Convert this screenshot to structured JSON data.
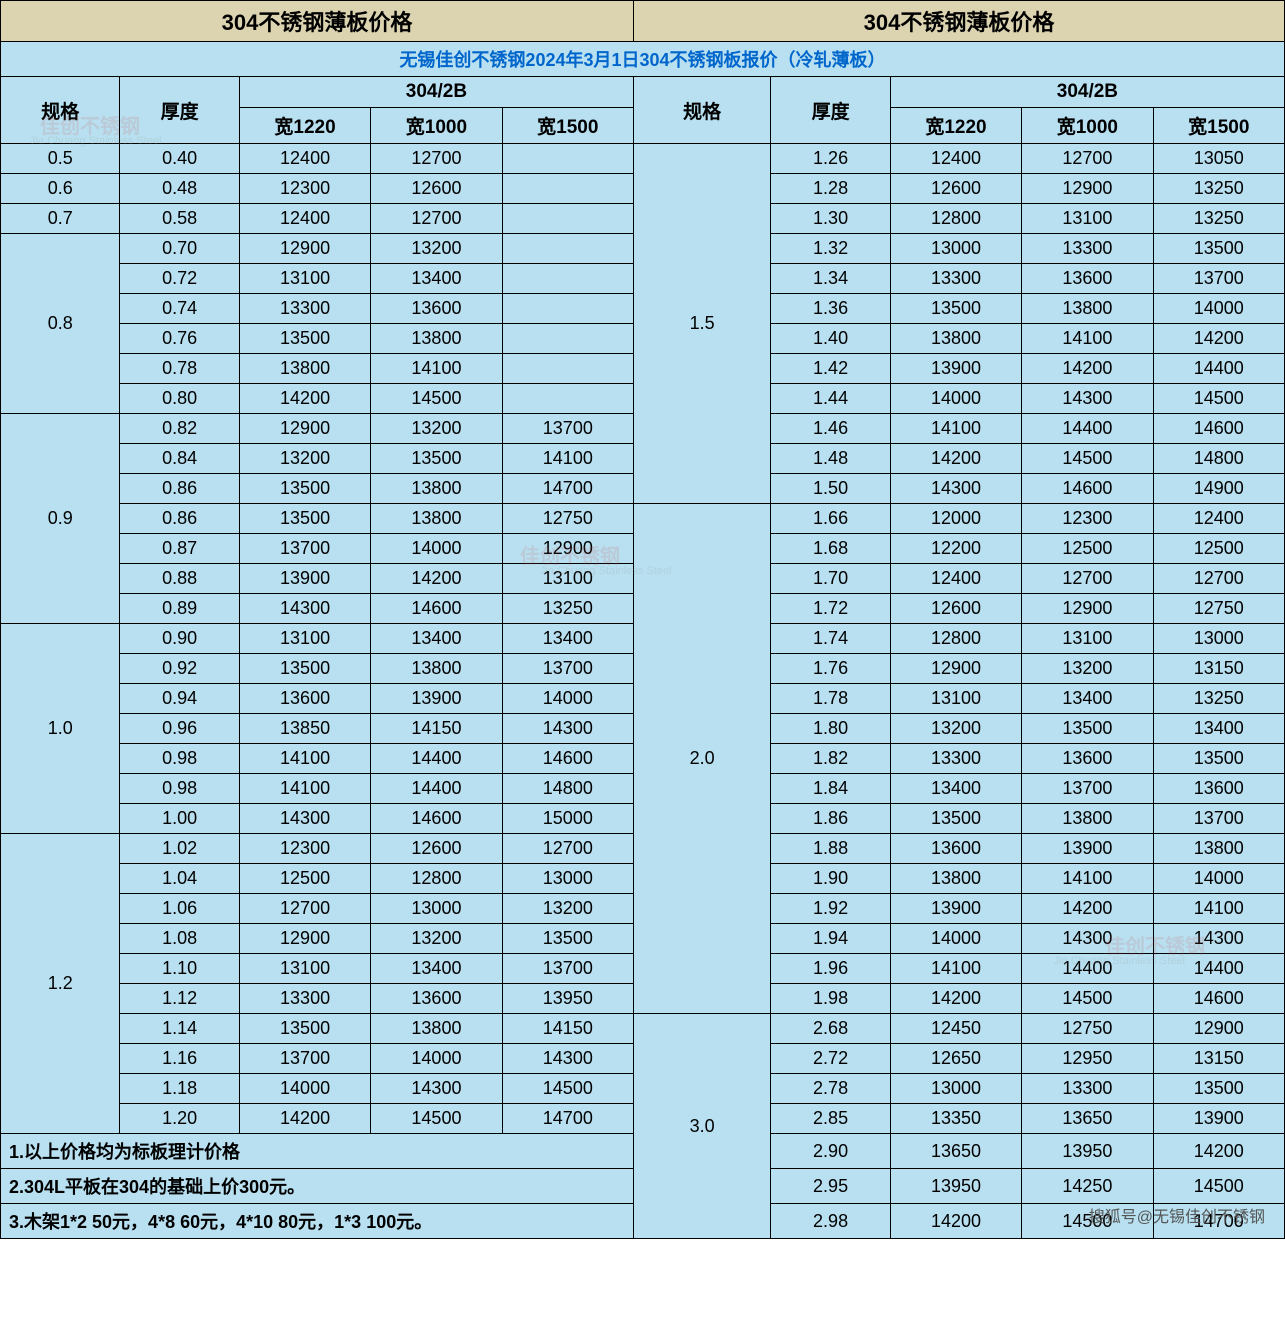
{
  "title_left": "304不锈钢薄板价格",
  "title_right": "304不锈钢薄板价格",
  "subtitle": "无锡佳创不锈钢2024年3月1日304不锈钢板报价（冷轧薄板）",
  "header": {
    "spec": "规格",
    "thickness": "厚度",
    "finish": "304/2B",
    "w1220": "宽1220",
    "w1000": "宽1000",
    "w1500": "宽1500"
  },
  "left_groups": [
    {
      "spec": "0.5",
      "rows": [
        {
          "t": "0.40",
          "w1220": "12400",
          "w1000": "12700",
          "w1500": ""
        }
      ]
    },
    {
      "spec": "0.6",
      "rows": [
        {
          "t": "0.48",
          "w1220": "12300",
          "w1000": "12600",
          "w1500": ""
        }
      ]
    },
    {
      "spec": "0.7",
      "rows": [
        {
          "t": "0.58",
          "w1220": "12400",
          "w1000": "12700",
          "w1500": ""
        }
      ]
    },
    {
      "spec": "0.8",
      "rows": [
        {
          "t": "0.70",
          "w1220": "12900",
          "w1000": "13200",
          "w1500": ""
        },
        {
          "t": "0.72",
          "w1220": "13100",
          "w1000": "13400",
          "w1500": ""
        },
        {
          "t": "0.74",
          "w1220": "13300",
          "w1000": "13600",
          "w1500": ""
        },
        {
          "t": "0.76",
          "w1220": "13500",
          "w1000": "13800",
          "w1500": ""
        },
        {
          "t": "0.78",
          "w1220": "13800",
          "w1000": "14100",
          "w1500": ""
        },
        {
          "t": "0.80",
          "w1220": "14200",
          "w1000": "14500",
          "w1500": ""
        }
      ]
    },
    {
      "spec": "0.9",
      "rows": [
        {
          "t": "0.82",
          "w1220": "12900",
          "w1000": "13200",
          "w1500": "13700"
        },
        {
          "t": "0.84",
          "w1220": "13200",
          "w1000": "13500",
          "w1500": "14100"
        },
        {
          "t": "0.86",
          "w1220": "13500",
          "w1000": "13800",
          "w1500": "14700"
        },
        {
          "t": "0.86",
          "w1220": "13500",
          "w1000": "13800",
          "w1500": "12750"
        },
        {
          "t": "0.87",
          "w1220": "13700",
          "w1000": "14000",
          "w1500": "12900"
        },
        {
          "t": "0.88",
          "w1220": "13900",
          "w1000": "14200",
          "w1500": "13100"
        },
        {
          "t": "0.89",
          "w1220": "14300",
          "w1000": "14600",
          "w1500": "13250"
        }
      ]
    },
    {
      "spec": "1.0",
      "rows": [
        {
          "t": "0.90",
          "w1220": "13100",
          "w1000": "13400",
          "w1500": "13400"
        },
        {
          "t": "0.92",
          "w1220": "13500",
          "w1000": "13800",
          "w1500": "13700"
        },
        {
          "t": "0.94",
          "w1220": "13600",
          "w1000": "13900",
          "w1500": "14000"
        },
        {
          "t": "0.96",
          "w1220": "13850",
          "w1000": "14150",
          "w1500": "14300"
        },
        {
          "t": "0.98",
          "w1220": "14100",
          "w1000": "14400",
          "w1500": "14600"
        },
        {
          "t": "0.98",
          "w1220": "14100",
          "w1000": "14400",
          "w1500": "14800"
        },
        {
          "t": "1.00",
          "w1220": "14300",
          "w1000": "14600",
          "w1500": "15000"
        }
      ]
    },
    {
      "spec": "1.2",
      "rows": [
        {
          "t": "1.02",
          "w1220": "12300",
          "w1000": "12600",
          "w1500": "12700"
        },
        {
          "t": "1.04",
          "w1220": "12500",
          "w1000": "12800",
          "w1500": "13000"
        },
        {
          "t": "1.06",
          "w1220": "12700",
          "w1000": "13000",
          "w1500": "13200"
        },
        {
          "t": "1.08",
          "w1220": "12900",
          "w1000": "13200",
          "w1500": "13500"
        },
        {
          "t": "1.10",
          "w1220": "13100",
          "w1000": "13400",
          "w1500": "13700"
        },
        {
          "t": "1.12",
          "w1220": "13300",
          "w1000": "13600",
          "w1500": "13950"
        },
        {
          "t": "1.14",
          "w1220": "13500",
          "w1000": "13800",
          "w1500": "14150"
        },
        {
          "t": "1.16",
          "w1220": "13700",
          "w1000": "14000",
          "w1500": "14300"
        },
        {
          "t": "1.18",
          "w1220": "14000",
          "w1000": "14300",
          "w1500": "14500"
        },
        {
          "t": "1.20",
          "w1220": "14200",
          "w1000": "14500",
          "w1500": "14700"
        }
      ]
    }
  ],
  "right_groups": [
    {
      "spec": "1.5",
      "rows": [
        {
          "t": "1.26",
          "w1220": "12400",
          "w1000": "12700",
          "w1500": "13050"
        },
        {
          "t": "1.28",
          "w1220": "12600",
          "w1000": "12900",
          "w1500": "13250"
        },
        {
          "t": "1.30",
          "w1220": "12800",
          "w1000": "13100",
          "w1500": "13250"
        },
        {
          "t": "1.32",
          "w1220": "13000",
          "w1000": "13300",
          "w1500": "13500"
        },
        {
          "t": "1.34",
          "w1220": "13300",
          "w1000": "13600",
          "w1500": "13700"
        },
        {
          "t": "1.36",
          "w1220": "13500",
          "w1000": "13800",
          "w1500": "14000"
        },
        {
          "t": "1.40",
          "w1220": "13800",
          "w1000": "14100",
          "w1500": "14200"
        },
        {
          "t": "1.42",
          "w1220": "13900",
          "w1000": "14200",
          "w1500": "14400"
        },
        {
          "t": "1.44",
          "w1220": "14000",
          "w1000": "14300",
          "w1500": "14500"
        },
        {
          "t": "1.46",
          "w1220": "14100",
          "w1000": "14400",
          "w1500": "14600"
        },
        {
          "t": "1.48",
          "w1220": "14200",
          "w1000": "14500",
          "w1500": "14800"
        },
        {
          "t": "1.50",
          "w1220": "14300",
          "w1000": "14600",
          "w1500": "14900"
        }
      ]
    },
    {
      "spec": "2.0",
      "rows": [
        {
          "t": "1.66",
          "w1220": "12000",
          "w1000": "12300",
          "w1500": "12400"
        },
        {
          "t": "1.68",
          "w1220": "12200",
          "w1000": "12500",
          "w1500": "12500"
        },
        {
          "t": "1.70",
          "w1220": "12400",
          "w1000": "12700",
          "w1500": "12700"
        },
        {
          "t": "1.72",
          "w1220": "12600",
          "w1000": "12900",
          "w1500": "12750"
        },
        {
          "t": "1.74",
          "w1220": "12800",
          "w1000": "13100",
          "w1500": "13000"
        },
        {
          "t": "1.76",
          "w1220": "12900",
          "w1000": "13200",
          "w1500": "13150"
        },
        {
          "t": "1.78",
          "w1220": "13100",
          "w1000": "13400",
          "w1500": "13250"
        },
        {
          "t": "1.80",
          "w1220": "13200",
          "w1000": "13500",
          "w1500": "13400"
        },
        {
          "t": "1.82",
          "w1220": "13300",
          "w1000": "13600",
          "w1500": "13500"
        },
        {
          "t": "1.84",
          "w1220": "13400",
          "w1000": "13700",
          "w1500": "13600"
        },
        {
          "t": "1.86",
          "w1220": "13500",
          "w1000": "13800",
          "w1500": "13700"
        },
        {
          "t": "1.88",
          "w1220": "13600",
          "w1000": "13900",
          "w1500": "13800"
        },
        {
          "t": "1.90",
          "w1220": "13800",
          "w1000": "14100",
          "w1500": "14000"
        },
        {
          "t": "1.92",
          "w1220": "13900",
          "w1000": "14200",
          "w1500": "14100"
        },
        {
          "t": "1.94",
          "w1220": "14000",
          "w1000": "14300",
          "w1500": "14300"
        },
        {
          "t": "1.96",
          "w1220": "14100",
          "w1000": "14400",
          "w1500": "14400"
        },
        {
          "t": "1.98",
          "w1220": "14200",
          "w1000": "14500",
          "w1500": "14600"
        }
      ]
    },
    {
      "spec": "3.0",
      "rows": [
        {
          "t": "2.68",
          "w1220": "12450",
          "w1000": "12750",
          "w1500": "12900"
        },
        {
          "t": "2.72",
          "w1220": "12650",
          "w1000": "12950",
          "w1500": "13150"
        },
        {
          "t": "2.78",
          "w1220": "13000",
          "w1000": "13300",
          "w1500": "13500"
        },
        {
          "t": "2.85",
          "w1220": "13350",
          "w1000": "13650",
          "w1500": "13900"
        },
        {
          "t": "2.90",
          "w1220": "13650",
          "w1000": "13950",
          "w1500": "14200"
        },
        {
          "t": "2.95",
          "w1220": "13950",
          "w1000": "14250",
          "w1500": "14500"
        },
        {
          "t": "2.98",
          "w1220": "14200",
          "w1000": "14500",
          "w1500": "14700"
        }
      ]
    }
  ],
  "notes": [
    "1.以上价格均为标板理计价格",
    "2.304L平板在304的基础上价300元。",
    "3.木架1*2 50元，4*8 60元，4*10 80元，1*3 100元。"
  ],
  "watermarks": {
    "brand": "佳创不锈钢",
    "brand_en": "Jia Chuang Stainless Steel",
    "sohu": "搜狐号@无锡佳创不锈钢"
  },
  "colors": {
    "title_bg": "#dcd4b0",
    "cell_bg": "#b8e0f0",
    "border": "#000000",
    "subtitle_text": "#0066cc"
  }
}
